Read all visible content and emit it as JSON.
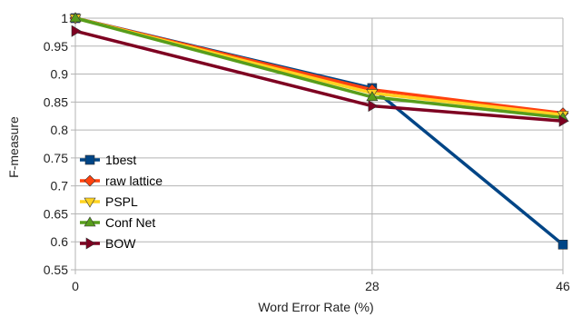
{
  "chart_data": {
    "type": "line",
    "title": "",
    "xlabel": "Word Error Rate (%)",
    "ylabel": "F-measure",
    "x": [
      0,
      28,
      46
    ],
    "x_tick_labels": [
      "0",
      "28",
      "46"
    ],
    "xlim": [
      0,
      46
    ],
    "ylim": [
      0.55,
      1.0
    ],
    "y_ticks": [
      0.55,
      0.6,
      0.65,
      0.7,
      0.75,
      0.8,
      0.85,
      0.9,
      0.95,
      1.0
    ],
    "y_tick_labels": [
      "0.55",
      "0.6",
      "0.65",
      "0.7",
      "0.75",
      "0.8",
      "0.85",
      "0.9",
      "0.95",
      "1"
    ],
    "grid": "horizontal",
    "legend_position": "left-center",
    "series": [
      {
        "name": "1best",
        "values": [
          1.0,
          0.875,
          0.595
        ],
        "color": "#004586",
        "marker": "square"
      },
      {
        "name": "raw lattice",
        "values": [
          1.0,
          0.872,
          0.83
        ],
        "color": "#ff420e",
        "marker": "diamond"
      },
      {
        "name": "PSPL",
        "values": [
          1.0,
          0.866,
          0.827
        ],
        "color": "#ffd320",
        "marker": "triangle-down"
      },
      {
        "name": "Conf Net",
        "values": [
          1.0,
          0.859,
          0.822
        ],
        "color": "#579d1c",
        "marker": "triangle-up"
      },
      {
        "name": "BOW",
        "values": [
          0.977,
          0.843,
          0.816
        ],
        "color": "#7e0021",
        "marker": "triangle-right"
      }
    ]
  }
}
